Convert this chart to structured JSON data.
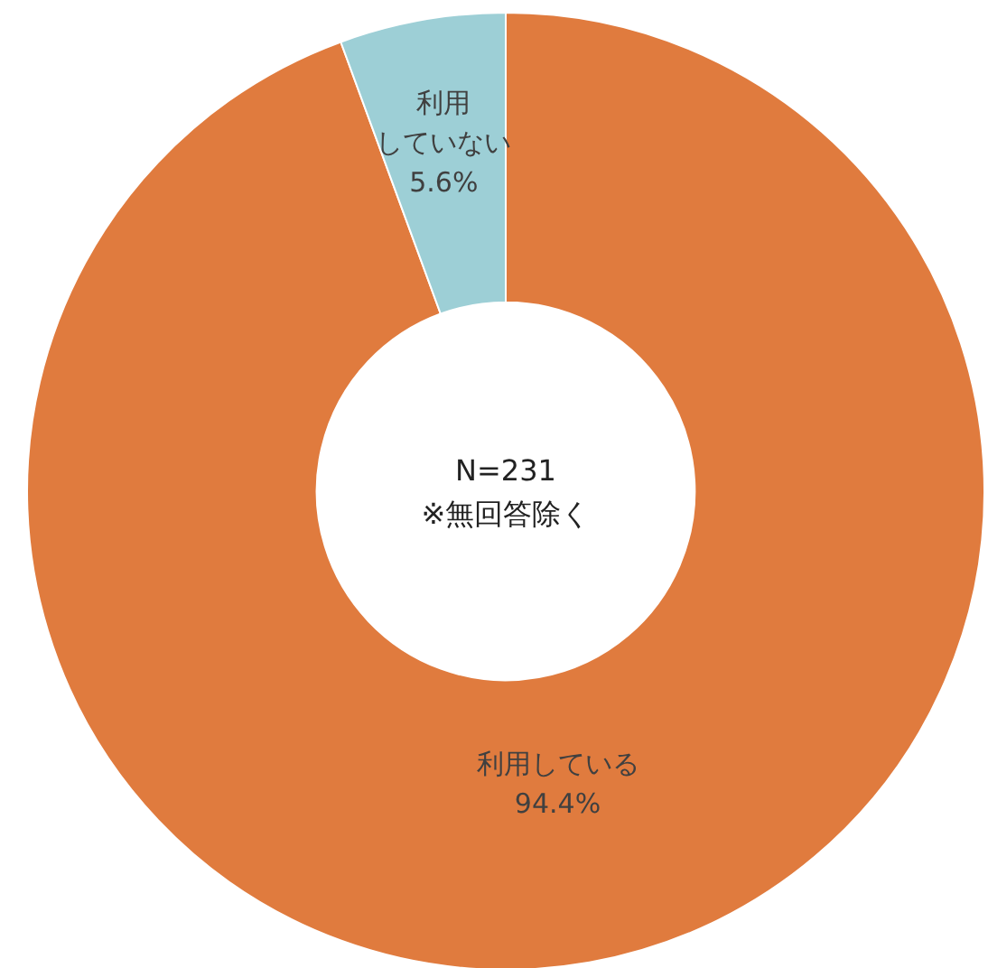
{
  "chart_data": {
    "type": "donut",
    "categories": [
      "利用している",
      "利用していない"
    ],
    "values": [
      94.4,
      5.6
    ],
    "colors": [
      "#e07b3e",
      "#9dcfd6"
    ],
    "value_labels": [
      "94.4%",
      "5.6%"
    ],
    "annotations": [
      "N=231",
      "※無回答除く"
    ]
  }
}
